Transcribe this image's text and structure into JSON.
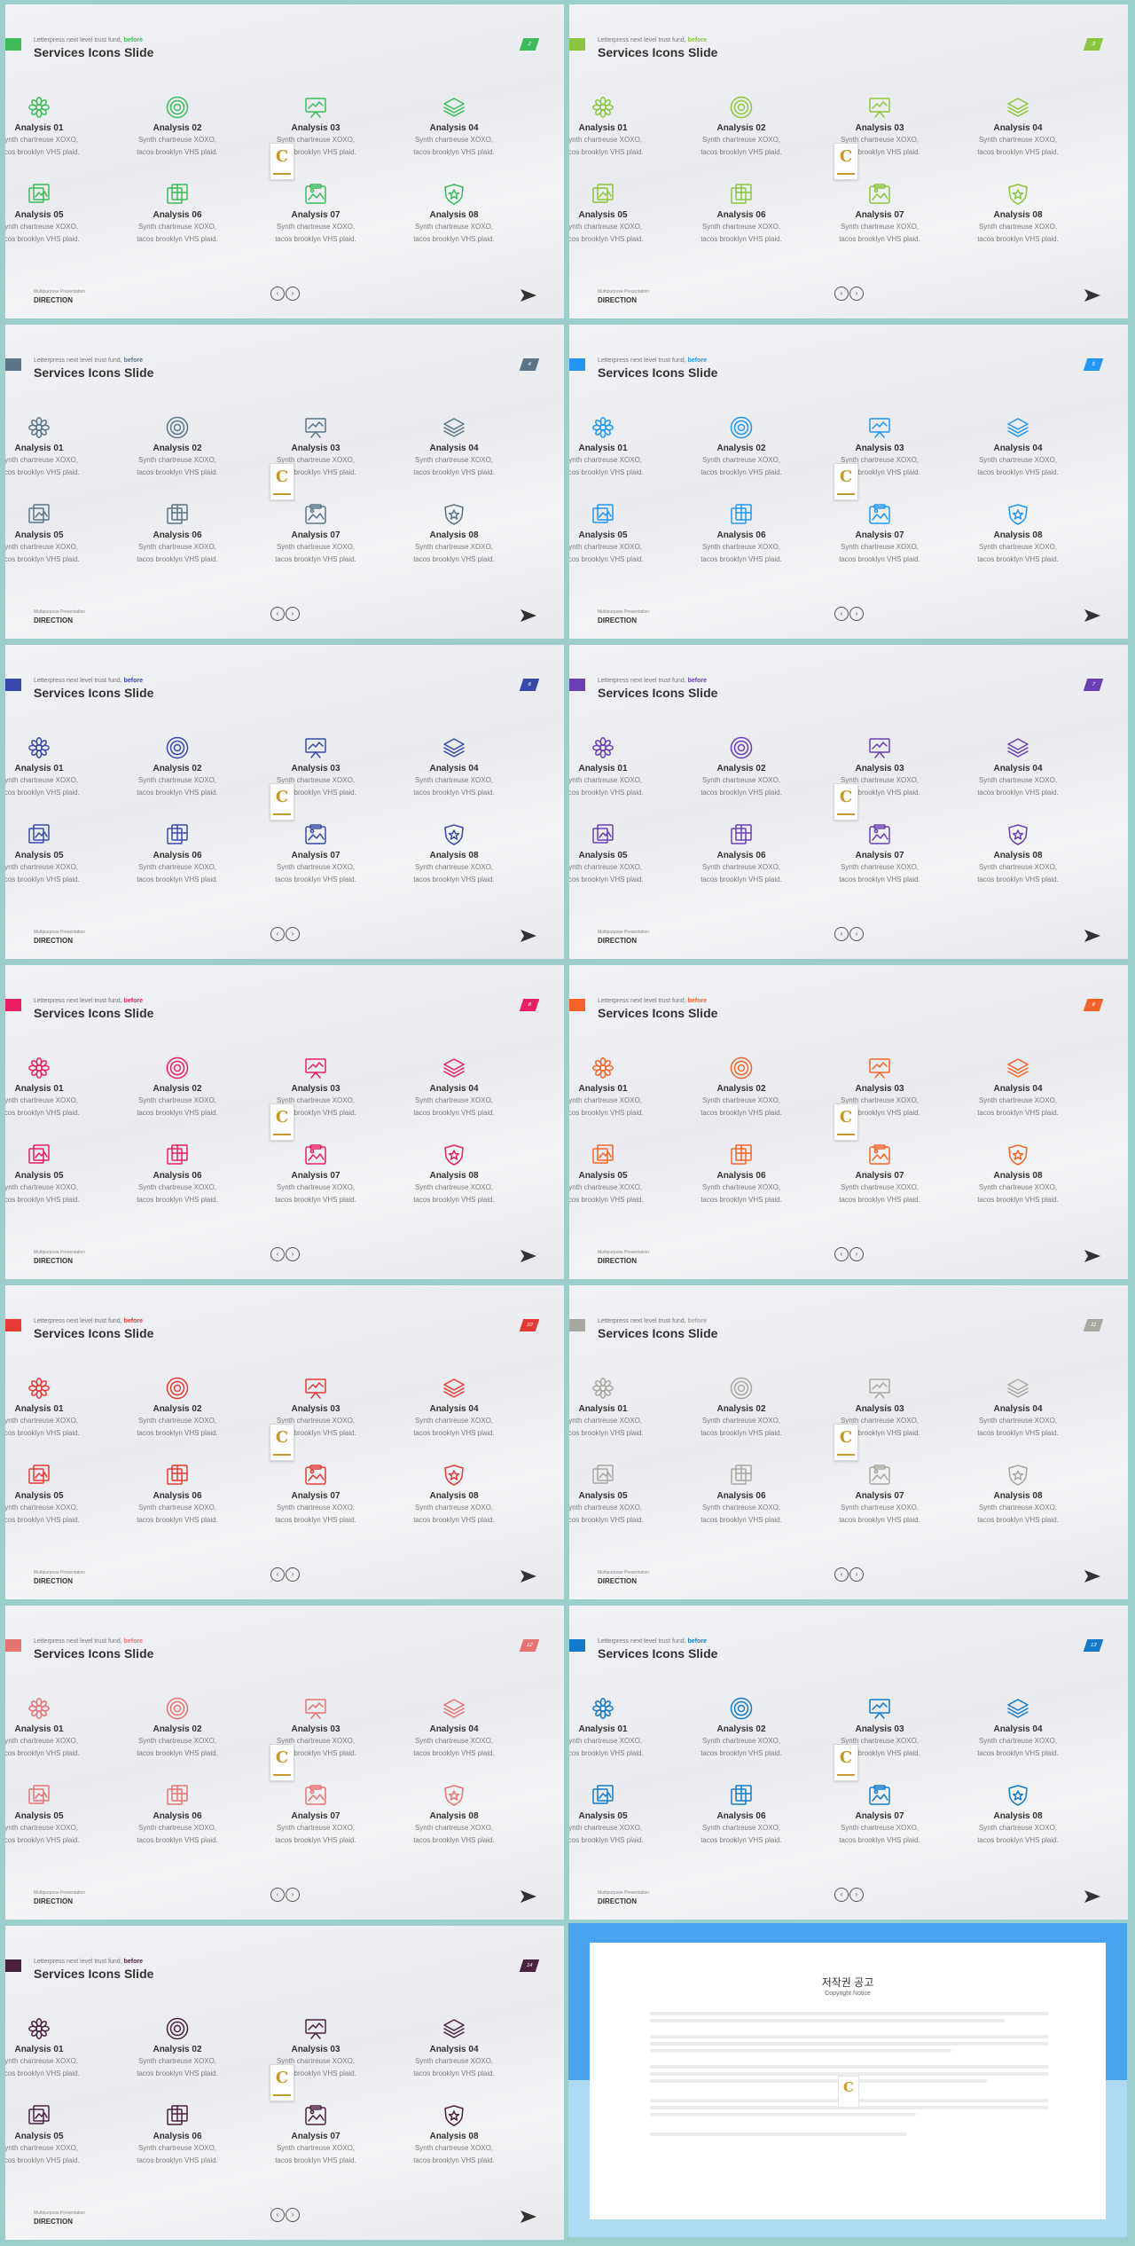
{
  "slide_common": {
    "tagline": "Letterpress next level trust fund,",
    "tagline_highlight": "before",
    "title": "Services Icons Slide",
    "footer_small": "Multipurpose Presentation",
    "footer_big": "DIRECTION",
    "nav_prev": "‹",
    "nav_next": "›",
    "items": [
      {
        "label": "Analysis 01",
        "desc1": "Synth chartreuse XOXO,",
        "desc2": "tacos brooklyn VHS plaid.",
        "icon": "flower-icon"
      },
      {
        "label": "Analysis 02",
        "desc1": "Synth chartreuse XOXO,",
        "desc2": "tacos brooklyn VHS plaid.",
        "icon": "target-icon"
      },
      {
        "label": "Analysis 03",
        "desc1": "Synth chartreuse XOXO,",
        "desc2": "tacos brooklyn VHS plaid.",
        "icon": "presentation-icon"
      },
      {
        "label": "Analysis 04",
        "desc1": "Synth chartreuse XOXO,",
        "desc2": "tacos brooklyn VHS plaid.",
        "icon": "layers-icon"
      },
      {
        "label": "Analysis 05",
        "desc1": "Synth chartreuse XOXO,",
        "desc2": "tacos brooklyn VHS plaid.",
        "icon": "gallery-icon"
      },
      {
        "label": "Analysis 06",
        "desc1": "Synth chartreuse XOXO,",
        "desc2": "tacos brooklyn VHS plaid.",
        "icon": "stack-icon"
      },
      {
        "label": "Analysis 07",
        "desc1": "Synth chartreuse XOXO,",
        "desc2": "tacos brooklyn VHS plaid.",
        "icon": "image-box-icon"
      },
      {
        "label": "Analysis 08",
        "desc1": "Synth chartreuse XOXO,",
        "desc2": "tacos brooklyn VHS plaid.",
        "icon": "star-shield-icon"
      }
    ]
  },
  "slides": [
    {
      "number": "2",
      "accent": "#3dbb5a"
    },
    {
      "number": "3",
      "accent": "#8cc63f"
    },
    {
      "number": "4",
      "accent": "#5b7486"
    },
    {
      "number": "5",
      "accent": "#2196f3"
    },
    {
      "number": "6",
      "accent": "#3949ab"
    },
    {
      "number": "7",
      "accent": "#6a3fb5"
    },
    {
      "number": "8",
      "accent": "#e91e63"
    },
    {
      "number": "9",
      "accent": "#f4642a"
    },
    {
      "number": "10",
      "accent": "#e53935"
    },
    {
      "number": "11",
      "accent": "#a7a9a0"
    },
    {
      "number": "12",
      "accent": "#e57373"
    },
    {
      "number": "13",
      "accent": "#1579c9"
    },
    {
      "number": "14",
      "accent": "#4a2240"
    }
  ],
  "notice": {
    "title": "저작권 공고",
    "subtitle": "Copyright Notice"
  }
}
